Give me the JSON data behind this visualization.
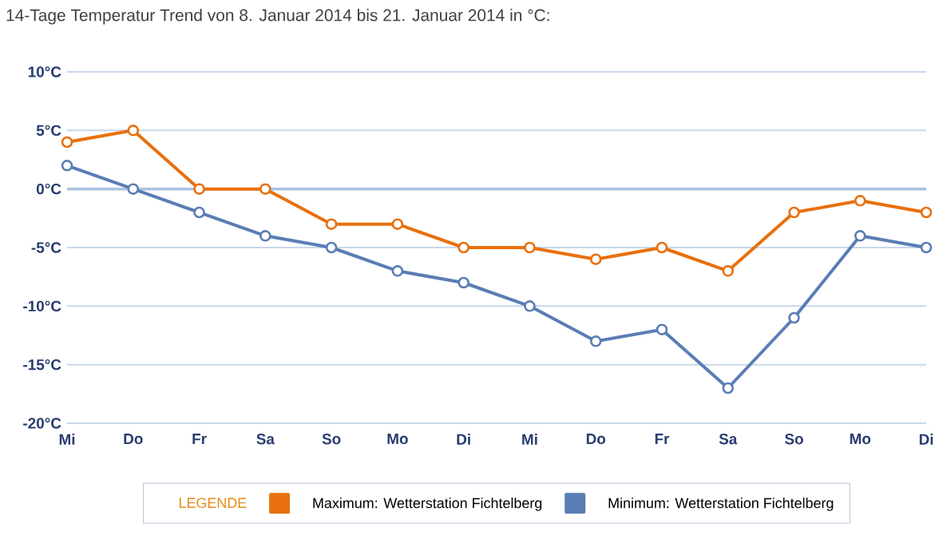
{
  "chart_data": {
    "type": "line",
    "title": "14-Tage Temperatur Trend von 8. Januar 2014 bis 21. Januar 2014 in °C:",
    "categories": [
      "Mi",
      "Do",
      "Fr",
      "Sa",
      "So",
      "Mo",
      "Di",
      "Mi",
      "Do",
      "Fr",
      "Sa",
      "So",
      "Mo",
      "Di"
    ],
    "series": [
      {
        "name": "Maximum: Wetterstation Fichtelberg",
        "color": "#e8700e",
        "values": [
          4,
          5,
          0,
          0,
          -3,
          -3,
          -5,
          -5,
          -6,
          -5,
          -7,
          -2,
          -1,
          -2
        ]
      },
      {
        "name": "Minimum: Wetterstation Fichtelberg",
        "color": "#5a7db5",
        "values": [
          2,
          0,
          -2,
          -4,
          -5,
          -7,
          -8,
          -10,
          -13,
          -12,
          -17,
          -11,
          -4,
          -5
        ]
      }
    ],
    "ylim": [
      -20,
      10
    ],
    "yticks": [
      {
        "value": -20,
        "label": "-20°C"
      },
      {
        "value": -15,
        "label": "-15°C"
      },
      {
        "value": -10,
        "label": "-10°C"
      },
      {
        "value": -5,
        "label": "-5°C"
      },
      {
        "value": 0,
        "label": "0°C"
      },
      {
        "value": 5,
        "label": "5°C"
      },
      {
        "value": 10,
        "label": "10°C"
      }
    ],
    "ref_lines": [
      {
        "axis": "y",
        "value": 0,
        "color": "#aac3e1"
      }
    ],
    "grid": "y",
    "legend": "bottom",
    "legend_title": "LEGENDE",
    "marker": "circle",
    "line_style": "solid"
  }
}
